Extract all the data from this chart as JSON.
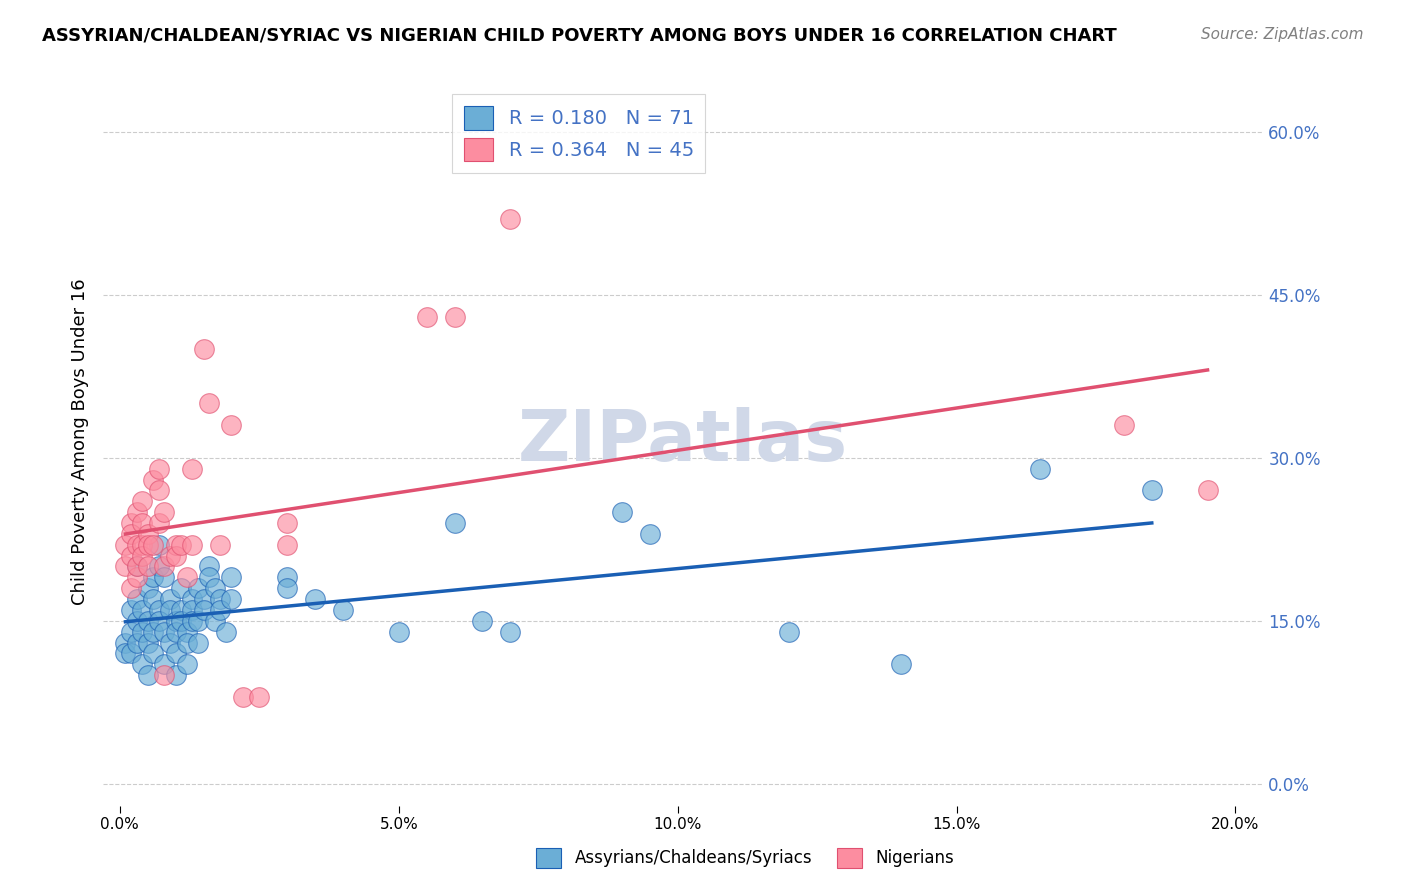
{
  "title": "ASSYRIAN/CHALDEAN/SYRIAC VS NIGERIAN CHILD POVERTY AMONG BOYS UNDER 16 CORRELATION CHART",
  "source": "Source: ZipAtlas.com",
  "ylabel": "Child Poverty Among Boys Under 16",
  "xlabel_ticks": [
    "0.0%",
    "5.0%",
    "10.0%",
    "15.0%",
    "20.0%"
  ],
  "xlabel_vals": [
    0.0,
    0.05,
    0.1,
    0.15,
    0.2
  ],
  "ylabel_ticks": [
    "0.0%",
    "15.0%",
    "30.0%",
    "45.0%",
    "60.0%"
  ],
  "ylabel_vals": [
    0.0,
    0.15,
    0.3,
    0.45,
    0.6
  ],
  "xlim": [
    -0.003,
    0.205
  ],
  "ylim": [
    -0.02,
    0.65
  ],
  "blue_R": 0.18,
  "blue_N": 71,
  "pink_R": 0.364,
  "pink_N": 45,
  "blue_color": "#6baed6",
  "pink_color": "#fc8da0",
  "blue_line_color": "#1a5fb4",
  "pink_line_color": "#e05070",
  "blue_scatter": [
    [
      0.001,
      0.13
    ],
    [
      0.001,
      0.12
    ],
    [
      0.002,
      0.14
    ],
    [
      0.002,
      0.12
    ],
    [
      0.002,
      0.16
    ],
    [
      0.003,
      0.15
    ],
    [
      0.003,
      0.13
    ],
    [
      0.003,
      0.17
    ],
    [
      0.003,
      0.2
    ],
    [
      0.004,
      0.14
    ],
    [
      0.004,
      0.16
    ],
    [
      0.004,
      0.11
    ],
    [
      0.005,
      0.15
    ],
    [
      0.005,
      0.13
    ],
    [
      0.005,
      0.18
    ],
    [
      0.005,
      0.1
    ],
    [
      0.006,
      0.17
    ],
    [
      0.006,
      0.14
    ],
    [
      0.006,
      0.12
    ],
    [
      0.006,
      0.19
    ],
    [
      0.007,
      0.22
    ],
    [
      0.007,
      0.2
    ],
    [
      0.007,
      0.16
    ],
    [
      0.007,
      0.15
    ],
    [
      0.008,
      0.14
    ],
    [
      0.008,
      0.11
    ],
    [
      0.008,
      0.19
    ],
    [
      0.009,
      0.17
    ],
    [
      0.009,
      0.13
    ],
    [
      0.009,
      0.16
    ],
    [
      0.01,
      0.15
    ],
    [
      0.01,
      0.14
    ],
    [
      0.01,
      0.12
    ],
    [
      0.01,
      0.1
    ],
    [
      0.011,
      0.16
    ],
    [
      0.011,
      0.18
    ],
    [
      0.011,
      0.15
    ],
    [
      0.012,
      0.14
    ],
    [
      0.012,
      0.13
    ],
    [
      0.012,
      0.11
    ],
    [
      0.013,
      0.17
    ],
    [
      0.013,
      0.16
    ],
    [
      0.013,
      0.15
    ],
    [
      0.014,
      0.18
    ],
    [
      0.014,
      0.15
    ],
    [
      0.014,
      0.13
    ],
    [
      0.015,
      0.17
    ],
    [
      0.015,
      0.16
    ],
    [
      0.016,
      0.2
    ],
    [
      0.016,
      0.19
    ],
    [
      0.017,
      0.18
    ],
    [
      0.017,
      0.15
    ],
    [
      0.018,
      0.17
    ],
    [
      0.018,
      0.16
    ],
    [
      0.019,
      0.14
    ],
    [
      0.02,
      0.19
    ],
    [
      0.02,
      0.17
    ],
    [
      0.03,
      0.19
    ],
    [
      0.03,
      0.18
    ],
    [
      0.035,
      0.17
    ],
    [
      0.04,
      0.16
    ],
    [
      0.05,
      0.14
    ],
    [
      0.06,
      0.24
    ],
    [
      0.065,
      0.15
    ],
    [
      0.07,
      0.14
    ],
    [
      0.09,
      0.25
    ],
    [
      0.095,
      0.23
    ],
    [
      0.12,
      0.14
    ],
    [
      0.14,
      0.11
    ],
    [
      0.165,
      0.29
    ],
    [
      0.185,
      0.27
    ]
  ],
  "pink_scatter": [
    [
      0.001,
      0.2
    ],
    [
      0.001,
      0.22
    ],
    [
      0.002,
      0.18
    ],
    [
      0.002,
      0.21
    ],
    [
      0.002,
      0.24
    ],
    [
      0.002,
      0.23
    ],
    [
      0.003,
      0.19
    ],
    [
      0.003,
      0.25
    ],
    [
      0.003,
      0.22
    ],
    [
      0.003,
      0.2
    ],
    [
      0.004,
      0.24
    ],
    [
      0.004,
      0.22
    ],
    [
      0.004,
      0.26
    ],
    [
      0.004,
      0.21
    ],
    [
      0.005,
      0.23
    ],
    [
      0.005,
      0.22
    ],
    [
      0.005,
      0.2
    ],
    [
      0.006,
      0.28
    ],
    [
      0.006,
      0.22
    ],
    [
      0.007,
      0.29
    ],
    [
      0.007,
      0.24
    ],
    [
      0.007,
      0.27
    ],
    [
      0.008,
      0.25
    ],
    [
      0.008,
      0.2
    ],
    [
      0.008,
      0.1
    ],
    [
      0.009,
      0.21
    ],
    [
      0.01,
      0.22
    ],
    [
      0.01,
      0.21
    ],
    [
      0.011,
      0.22
    ],
    [
      0.012,
      0.19
    ],
    [
      0.013,
      0.29
    ],
    [
      0.013,
      0.22
    ],
    [
      0.015,
      0.4
    ],
    [
      0.016,
      0.35
    ],
    [
      0.018,
      0.22
    ],
    [
      0.02,
      0.33
    ],
    [
      0.022,
      0.08
    ],
    [
      0.025,
      0.08
    ],
    [
      0.03,
      0.22
    ],
    [
      0.03,
      0.24
    ],
    [
      0.055,
      0.43
    ],
    [
      0.06,
      0.43
    ],
    [
      0.07,
      0.52
    ],
    [
      0.18,
      0.33
    ],
    [
      0.195,
      0.27
    ]
  ],
  "watermark": "ZIPatlas",
  "watermark_color": "#d0d8e8",
  "background_color": "#ffffff",
  "grid_color": "#cccccc"
}
